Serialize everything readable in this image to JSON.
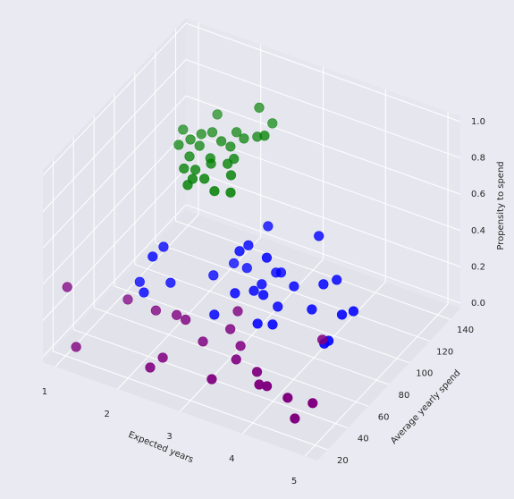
{
  "chart_data": {
    "type": "scatter3d",
    "xlabel": "Expected years",
    "ylabel": "Average yearly spend",
    "zlabel": "Propensity to spend",
    "xlim": [
      0.8,
      5.2
    ],
    "ylim": [
      10,
      150
    ],
    "zlim": [
      -0.03,
      1.03
    ],
    "xticks": [
      1,
      2,
      3,
      4,
      5
    ],
    "yticks": [
      20,
      40,
      60,
      80,
      100,
      120,
      140
    ],
    "zticks": [
      {
        "value": 0,
        "label": "0.0"
      },
      {
        "value": 0.2,
        "label": "0.2"
      },
      {
        "value": 0.4,
        "label": "0.4"
      },
      {
        "value": 0.6,
        "label": "0.6"
      },
      {
        "value": 0.8,
        "label": "0.8"
      },
      {
        "value": 1,
        "label": "1.0"
      }
    ],
    "grid": true,
    "series": [
      {
        "color": "#008000",
        "x": [
          2.63,
          2.0,
          1.76,
          2.76,
          2.14,
          2.43,
          2.03,
          2.73,
          1.96,
          2.35,
          2.59,
          1.88,
          2.14,
          2.52,
          2.14,
          2.7,
          2.21,
          2.68,
          2.36,
          2.43,
          2.44,
          2.83,
          3.04,
          2.57,
          2.85,
          2.41,
          3.01,
          2.48
        ],
        "y": [
          110,
          107.5,
          88.6,
          115,
          94,
          100,
          90,
          102,
          83.6,
          90,
          97.5,
          77,
          81.5,
          88.6,
          71.7,
          81,
          62,
          76,
          64,
          57,
          51.6,
          54,
          57,
          60,
          69,
          75.6,
          92,
          72
        ],
        "z": [
          1.0,
          0.9,
          0.9,
          0.9,
          0.9,
          0.9,
          0.9,
          0.9,
          0.9,
          0.9,
          0.9,
          0.9,
          0.9,
          0.9,
          0.9,
          0.9,
          0.9,
          0.9,
          0.9,
          0.9,
          0.9,
          0.9,
          0.9,
          0.9,
          0.9,
          0.9,
          1.0,
          0.9
        ]
      },
      {
        "color": "#0000ff",
        "x": [
          3.05,
          3.77,
          2.03,
          3.03,
          2.01,
          2.99,
          3.39,
          2.65,
          1.73,
          2.11,
          2.54,
          2.86,
          3.26,
          3.32,
          3.22,
          3.63,
          3.96,
          4.07,
          1.9,
          3.0,
          3.2,
          3.36,
          3.46,
          3.9,
          2.79,
          3.41,
          3.6,
          4.32,
          4.42,
          4.23,
          4.25
        ],
        "y": [
          93,
          98.8,
          53,
          75,
          43.6,
          68.8,
          71,
          84,
          48,
          55,
          70.7,
          84,
          88,
          89.3,
          76.5,
          83,
          91.7,
          98,
          41.7,
          63.7,
          70,
          69.5,
          77.5,
          84,
          56.3,
          60.8,
          63.9,
          87.8,
          93,
          76,
          79
        ],
        "z": [
          0.5,
          0.5,
          0.5,
          0.5,
          0.5,
          0.5,
          0.5,
          0.3,
          0.3,
          0.3,
          0.3,
          0.3,
          0.3,
          0.3,
          0.3,
          0.3,
          0.3,
          0.3,
          0.3,
          0.3,
          0.3,
          0.3,
          0.2,
          0.2,
          0.2,
          0.2,
          0.2,
          0.2,
          0.2,
          0.1,
          0.1
        ]
      },
      {
        "color": "#800080",
        "x": [
          0.92,
          1.19,
          1.48,
          1.94,
          2.24,
          2.4,
          2.93,
          2.65,
          2.94,
          2.35,
          2.31,
          3.18,
          3.25,
          3.15,
          3.64,
          3.81,
          3.92,
          4.3,
          4.66,
          4.62,
          4.06
        ],
        "y": [
          26.5,
          18.7,
          51.6,
          51,
          53,
          52,
          70.7,
          53.7,
          62.8,
          32.7,
          22.8,
          30,
          49.6,
          60,
          46.2,
          38,
          38.8,
          35.9,
          38.4,
          23.4,
          84.5
        ],
        "z": [
          0.3,
          0.05,
          0.15,
          0.15,
          0.15,
          0.15,
          0.15,
          0.05,
          0.1,
          0.05,
          0.05,
          0.05,
          0.05,
          0.05,
          0.05,
          0.05,
          0.05,
          0.05,
          0.05,
          0.05,
          0.05
        ]
      }
    ]
  }
}
